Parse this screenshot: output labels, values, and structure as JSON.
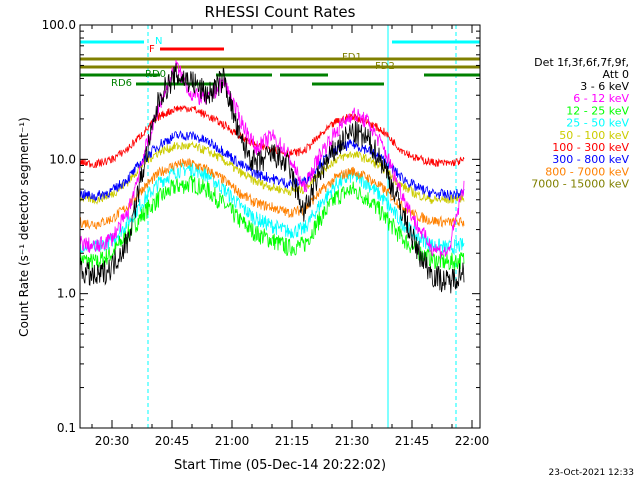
{
  "chart_data": {
    "type": "line",
    "title": "RHESSI Count Rates",
    "xlabel": "Start Time (05-Dec-14 20:22:02)",
    "ylabel": "Count Rate (s⁻¹ detector segment⁻¹)",
    "yscale": "log",
    "ylim": [
      0.1,
      100.0
    ],
    "xlim": [
      "20:22",
      "22:02"
    ],
    "x_ticks": [
      "20:30",
      "20:45",
      "21:00",
      "21:15",
      "21:30",
      "21:45",
      "22:00"
    ],
    "y_ticks": [
      "0.1",
      "1.0",
      "10.0",
      "100.0"
    ],
    "x_times": [
      "20:22",
      "20:26",
      "20:30",
      "20:34",
      "20:38",
      "20:42",
      "20:46",
      "20:50",
      "20:54",
      "20:58",
      "21:02",
      "21:06",
      "21:10",
      "21:14",
      "21:18",
      "21:22",
      "21:26",
      "21:30",
      "21:34",
      "21:38",
      "21:42",
      "21:46",
      "21:50",
      "21:54",
      "21:58"
    ],
    "series": [
      {
        "name": "3 - 6 keV",
        "color": "#000000",
        "values": [
          1.5,
          1.3,
          1.6,
          2.5,
          9,
          30,
          42,
          38,
          30,
          40,
          14,
          9,
          11,
          9,
          4,
          8,
          12,
          16,
          14,
          9,
          4.5,
          2.2,
          1.4,
          1.2,
          1.5
        ]
      },
      {
        "name": "6 - 12 keV",
        "color": "#ff00ff",
        "values": [
          2.4,
          2.2,
          2.6,
          4,
          11,
          26,
          50,
          30,
          28,
          38,
          20,
          12,
          15,
          11,
          6,
          11,
          16,
          22,
          19,
          12,
          6,
          3.3,
          2.2,
          2,
          6.5
        ]
      },
      {
        "name": "12 - 25 keV",
        "color": "#00ff00",
        "values": [
          1.8,
          1.7,
          2,
          2.8,
          4,
          5.2,
          6.3,
          6.6,
          5.9,
          4.6,
          3.5,
          2.8,
          2.5,
          2.2,
          2.3,
          3.6,
          5.2,
          6,
          5.1,
          3.8,
          2.7,
          2.1,
          1.8,
          1.7,
          1.8
        ]
      },
      {
        "name": "25 - 50 keV",
        "color": "#00ffff",
        "values": [
          2.3,
          2.2,
          2.5,
          3.4,
          5,
          6.8,
          8.2,
          8.6,
          7.6,
          6,
          4.5,
          3.6,
          3.2,
          2.9,
          3,
          4.6,
          6.5,
          7.6,
          6.6,
          5,
          3.5,
          2.7,
          2.3,
          2.2,
          2.3
        ]
      },
      {
        "name": "50 - 100 keV",
        "color": "#cccc00",
        "values": [
          5.2,
          5,
          5.5,
          6.8,
          9.5,
          11.5,
          12.5,
          12.5,
          11.5,
          9.8,
          8,
          6.8,
          6.2,
          5.8,
          6,
          8,
          10,
          11,
          10,
          8.5,
          6.5,
          5.5,
          5,
          5,
          5.2
        ]
      },
      {
        "name": "100 - 300 keV",
        "color": "#ff0000",
        "values": [
          9.5,
          9.2,
          10,
          12,
          16,
          21,
          24,
          24,
          21,
          18,
          15,
          12.5,
          12,
          11,
          11.5,
          15,
          19,
          21,
          19,
          16,
          12,
          10.2,
          9.5,
          9.3,
          9.8
        ]
      },
      {
        "name": "300 - 800 keV",
        "color": "#0000ff",
        "values": [
          5.5,
          5.3,
          5.8,
          7.2,
          10,
          13,
          15,
          15,
          13.5,
          11.5,
          9.2,
          7.8,
          7.2,
          6.6,
          6.8,
          9.3,
          11.8,
          13,
          11.8,
          9.8,
          7.5,
          6.2,
          5.6,
          5.4,
          5.6
        ]
      },
      {
        "name": "800 - 7000 keV",
        "color": "#ff8000",
        "values": [
          3.4,
          3.3,
          3.6,
          4.5,
          6.2,
          8,
          9.2,
          9.3,
          8.3,
          7,
          5.6,
          4.7,
          4.4,
          4,
          4.2,
          5.7,
          7.3,
          8.2,
          7.3,
          6,
          4.6,
          3.8,
          3.5,
          3.4,
          3.4
        ]
      },
      {
        "name": "7000 - 15000 keV",
        "color": "#808000",
        "values": []
      }
    ],
    "legend": {
      "position": "right",
      "header": [
        "Det 1f,3f,6f,7f,9f,",
        "Att 0"
      ]
    },
    "annotations": {
      "N": "N",
      "F": "F",
      "FD1": "FD1",
      "FD2": "FD2",
      "RD0": "RD0",
      "RD6": "RD6"
    },
    "flag_bars": {
      "cyan_N": [
        [
          "20:22",
          "20:38"
        ],
        [
          "21:40",
          "22:02"
        ]
      ],
      "red_F": [
        [
          "20:42",
          "20:58"
        ]
      ],
      "olive_FD1": [
        [
          "20:22",
          "22:02"
        ]
      ],
      "olive_FD2": [
        [
          "20:22",
          "22:02"
        ]
      ],
      "green_RD0": [
        [
          "20:22",
          "20:42"
        ],
        [
          "20:56",
          "21:10"
        ],
        [
          "21:12",
          "21:24"
        ],
        [
          "21:48",
          "22:02"
        ]
      ],
      "green_RD6": [
        [
          "20:36",
          "20:56"
        ],
        [
          "21:20",
          "21:38"
        ]
      ]
    },
    "vlines": {
      "solid": [
        "20:22",
        "21:39"
      ],
      "dashed": [
        "20:39",
        "21:56"
      ]
    }
  },
  "footer": {
    "timestamp": "23-Oct-2021 12:33"
  }
}
